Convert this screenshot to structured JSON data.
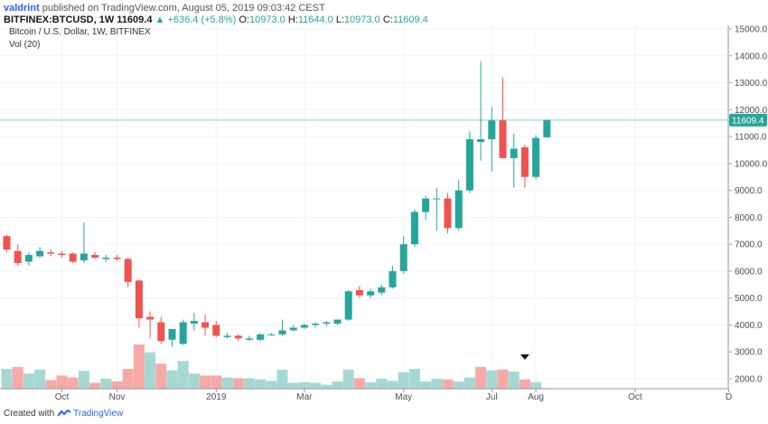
{
  "header": {
    "author": "valdrint",
    "published": "published on TradingView.com, August 05, 2019 09:03:42 CEST",
    "symbol": "BITFINEX:BTCUSD, 1W",
    "last": "11609.4",
    "change": "▲ +636.4 (+5.8%)",
    "open_label": "O:",
    "open": "10973.0",
    "high_label": "H:",
    "high": "11644.0",
    "low_label": "L:",
    "low": "10973.0",
    "close_label": "C:",
    "close": "11609.4"
  },
  "series_title": "Bitcoin / U.S. Dollar, 1W, BITFINEX",
  "volume_title": "Vol (20)",
  "footer": {
    "created": "Created with",
    "brand": "TradingView"
  },
  "colors": {
    "up": "#26a69a",
    "down": "#ef5350",
    "up_vol": "#a6d8d3",
    "down_vol": "#f7a9a7",
    "grid": "#f0f3fa",
    "price_line": "#7fcfc3"
  },
  "chart_data": {
    "type": "candlestick",
    "timeframe": "1W",
    "ylim": [
      1500,
      15300
    ],
    "y_ticks": [
      2000,
      3000,
      4000,
      5000,
      6000,
      7000,
      8000,
      9000,
      10000,
      11000,
      12000,
      13000,
      14000,
      15000
    ],
    "y_tick_labels": [
      "2000.0",
      "3000.0",
      "4000.0",
      "5000.0",
      "6000.0",
      "7000.0",
      "8000.0",
      "9000.0",
      "10000.0",
      "11000.0",
      "12000.0",
      "13000.0",
      "14000.0",
      "15000.0"
    ],
    "x_labels": [
      {
        "label": "Oct",
        "at_index": 5
      },
      {
        "label": "Nov",
        "at_index": 10
      },
      {
        "label": "2019",
        "at_index": 19
      },
      {
        "label": "Mar",
        "at_index": 27
      },
      {
        "label": "May",
        "at_index": 36
      },
      {
        "label": "Jul",
        "at_index": 44
      },
      {
        "label": "Aug",
        "at_index": 48
      },
      {
        "label": "Oct",
        "at_index": 57
      },
      {
        "label": "D",
        "at_index": 65.5
      }
    ],
    "last_price": 11609.4,
    "last_price_label": "11609.4",
    "candles": [
      {
        "o": 7300,
        "h": 7350,
        "l": 6700,
        "c": 6800
      },
      {
        "o": 6750,
        "h": 7000,
        "l": 6200,
        "c": 6300
      },
      {
        "o": 6350,
        "h": 6700,
        "l": 6200,
        "c": 6600
      },
      {
        "o": 6550,
        "h": 6900,
        "l": 6500,
        "c": 6750
      },
      {
        "o": 6700,
        "h": 6800,
        "l": 6550,
        "c": 6650
      },
      {
        "o": 6650,
        "h": 6750,
        "l": 6500,
        "c": 6600
      },
      {
        "o": 6650,
        "h": 6700,
        "l": 6300,
        "c": 6350
      },
      {
        "o": 6400,
        "h": 7800,
        "l": 6300,
        "c": 6650
      },
      {
        "o": 6600,
        "h": 6700,
        "l": 6450,
        "c": 6500
      },
      {
        "o": 6450,
        "h": 6600,
        "l": 6350,
        "c": 6500
      },
      {
        "o": 6500,
        "h": 6600,
        "l": 6400,
        "c": 6450
      },
      {
        "o": 6450,
        "h": 6500,
        "l": 5400,
        "c": 5600
      },
      {
        "o": 5650,
        "h": 5700,
        "l": 3900,
        "c": 4250
      },
      {
        "o": 4300,
        "h": 4500,
        "l": 3500,
        "c": 4200
      },
      {
        "o": 4100,
        "h": 4300,
        "l": 3300,
        "c": 3400
      },
      {
        "o": 3450,
        "h": 3850,
        "l": 3200,
        "c": 3850
      },
      {
        "o": 3300,
        "h": 4200,
        "l": 3250,
        "c": 4100
      },
      {
        "o": 4050,
        "h": 4450,
        "l": 3800,
        "c": 4150
      },
      {
        "o": 4100,
        "h": 4400,
        "l": 3600,
        "c": 3900
      },
      {
        "o": 4000,
        "h": 4150,
        "l": 3550,
        "c": 3600
      },
      {
        "o": 3550,
        "h": 3700,
        "l": 3500,
        "c": 3600
      },
      {
        "o": 3600,
        "h": 3650,
        "l": 3400,
        "c": 3500
      },
      {
        "o": 3450,
        "h": 3600,
        "l": 3400,
        "c": 3500
      },
      {
        "o": 3450,
        "h": 3700,
        "l": 3400,
        "c": 3650
      },
      {
        "o": 3650,
        "h": 3700,
        "l": 3600,
        "c": 3650
      },
      {
        "o": 3650,
        "h": 4200,
        "l": 3600,
        "c": 3800
      },
      {
        "o": 3800,
        "h": 4000,
        "l": 3750,
        "c": 3900
      },
      {
        "o": 3900,
        "h": 4050,
        "l": 3850,
        "c": 4000
      },
      {
        "o": 4000,
        "h": 4100,
        "l": 3900,
        "c": 4050
      },
      {
        "o": 4050,
        "h": 4150,
        "l": 3950,
        "c": 4100
      },
      {
        "o": 4050,
        "h": 4200,
        "l": 4000,
        "c": 4200
      },
      {
        "o": 4200,
        "h": 5300,
        "l": 4150,
        "c": 5250
      },
      {
        "o": 5300,
        "h": 5450,
        "l": 5000,
        "c": 5100
      },
      {
        "o": 5100,
        "h": 5350,
        "l": 5000,
        "c": 5250
      },
      {
        "o": 5200,
        "h": 5500,
        "l": 5100,
        "c": 5400
      },
      {
        "o": 5400,
        "h": 6200,
        "l": 5350,
        "c": 6000
      },
      {
        "o": 6000,
        "h": 7300,
        "l": 5900,
        "c": 7000
      },
      {
        "o": 7000,
        "h": 8300,
        "l": 6900,
        "c": 8200
      },
      {
        "o": 8200,
        "h": 8800,
        "l": 7900,
        "c": 8700
      },
      {
        "o": 8700,
        "h": 9100,
        "l": 7500,
        "c": 8700
      },
      {
        "o": 8700,
        "h": 8900,
        "l": 7400,
        "c": 7600
      },
      {
        "o": 7600,
        "h": 9400,
        "l": 7500,
        "c": 9000
      },
      {
        "o": 9000,
        "h": 11200,
        "l": 8900,
        "c": 10900
      },
      {
        "o": 10800,
        "h": 13800,
        "l": 10100,
        "c": 10900
      },
      {
        "o": 10900,
        "h": 12100,
        "l": 9700,
        "c": 11600
      },
      {
        "o": 11600,
        "h": 13200,
        "l": 10200,
        "c": 10200
      },
      {
        "o": 10200,
        "h": 11100,
        "l": 9100,
        "c": 10550
      },
      {
        "o": 10600,
        "h": 10700,
        "l": 9100,
        "c": 9500
      },
      {
        "o": 9500,
        "h": 11050,
        "l": 9400,
        "c": 10950
      },
      {
        "o": 10973,
        "h": 11644,
        "l": 10973,
        "c": 11609.4
      }
    ],
    "volume": [
      {
        "v": 30,
        "dir": "up"
      },
      {
        "v": 33,
        "dir": "down"
      },
      {
        "v": 23,
        "dir": "up"
      },
      {
        "v": 29,
        "dir": "up"
      },
      {
        "v": 13,
        "dir": "down"
      },
      {
        "v": 20,
        "dir": "down"
      },
      {
        "v": 17,
        "dir": "down"
      },
      {
        "v": 27,
        "dir": "up"
      },
      {
        "v": 9,
        "dir": "down"
      },
      {
        "v": 15,
        "dir": "up"
      },
      {
        "v": 11,
        "dir": "down"
      },
      {
        "v": 30,
        "dir": "down"
      },
      {
        "v": 67,
        "dir": "down"
      },
      {
        "v": 55,
        "dir": "up"
      },
      {
        "v": 38,
        "dir": "down"
      },
      {
        "v": 28,
        "dir": "up"
      },
      {
        "v": 42,
        "dir": "up"
      },
      {
        "v": 23,
        "dir": "up"
      },
      {
        "v": 20,
        "dir": "down"
      },
      {
        "v": 20,
        "dir": "down"
      },
      {
        "v": 17,
        "dir": "up"
      },
      {
        "v": 16,
        "dir": "down"
      },
      {
        "v": 16,
        "dir": "up"
      },
      {
        "v": 14,
        "dir": "up"
      },
      {
        "v": 12,
        "dir": "up"
      },
      {
        "v": 29,
        "dir": "up"
      },
      {
        "v": 9,
        "dir": "up"
      },
      {
        "v": 10,
        "dir": "up"
      },
      {
        "v": 9,
        "dir": "up"
      },
      {
        "v": 6,
        "dir": "up"
      },
      {
        "v": 11,
        "dir": "up"
      },
      {
        "v": 29,
        "dir": "up"
      },
      {
        "v": 16,
        "dir": "down"
      },
      {
        "v": 10,
        "dir": "up"
      },
      {
        "v": 15,
        "dir": "up"
      },
      {
        "v": 12,
        "dir": "up"
      },
      {
        "v": 25,
        "dir": "up"
      },
      {
        "v": 30,
        "dir": "up"
      },
      {
        "v": 11,
        "dir": "up"
      },
      {
        "v": 15,
        "dir": "up"
      },
      {
        "v": 14,
        "dir": "down"
      },
      {
        "v": 11,
        "dir": "up"
      },
      {
        "v": 17,
        "dir": "up"
      },
      {
        "v": 33,
        "dir": "down"
      },
      {
        "v": 28,
        "dir": "up"
      },
      {
        "v": 29,
        "dir": "down"
      },
      {
        "v": 26,
        "dir": "up"
      },
      {
        "v": 14,
        "dir": "down"
      },
      {
        "v": 10,
        "dir": "up"
      },
      {
        "v": 1,
        "dir": "up"
      }
    ],
    "dividend_marker_index": 47
  }
}
